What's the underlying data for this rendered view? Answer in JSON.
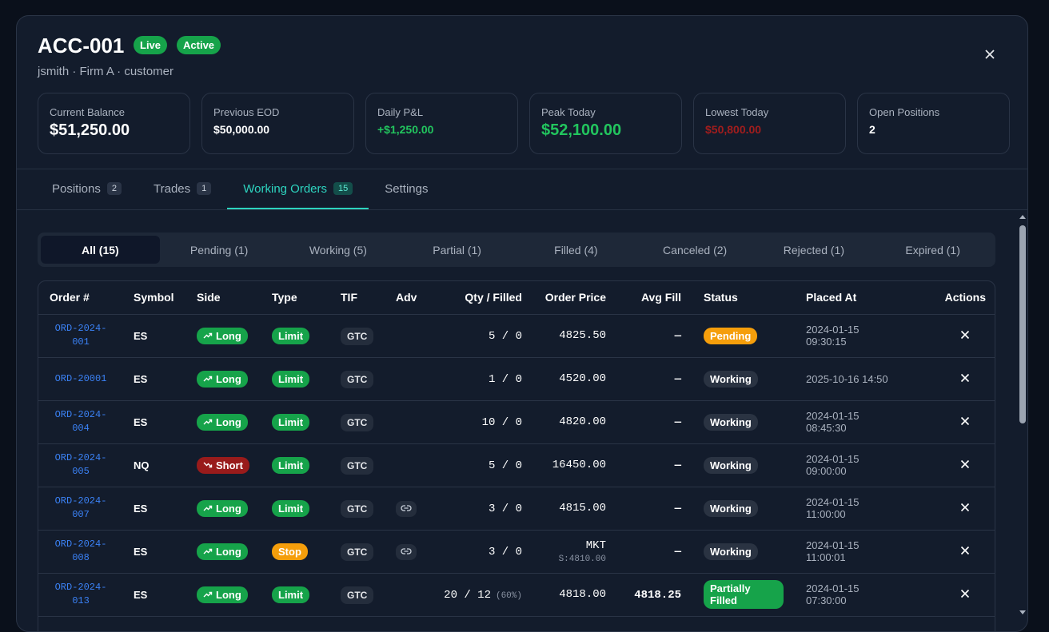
{
  "header": {
    "title": "ACC-001",
    "badges": [
      "Live",
      "Active"
    ],
    "subtitle": "jsmith · Firm A · customer"
  },
  "stats": [
    {
      "label": "Current Balance",
      "value": "$51,250.00",
      "color": "#ffffff"
    },
    {
      "label": "Previous EOD",
      "value": "$50,000.00",
      "color": "#ffffff"
    },
    {
      "label": "Daily P&L",
      "value": "+$1,250.00",
      "color": "#22c55e"
    },
    {
      "label": "Peak Today",
      "value": "$52,100.00",
      "color": "#22c55e"
    },
    {
      "label": "Lowest Today",
      "value": "$50,800.00",
      "color": "#a11d1d"
    },
    {
      "label": "Open Positions",
      "value": "2",
      "color": "#ffffff"
    }
  ],
  "tabs": {
    "active": 2,
    "items": [
      {
        "label": "Positions",
        "count": "2"
      },
      {
        "label": "Trades",
        "count": "1"
      },
      {
        "label": "Working Orders",
        "count": "15"
      },
      {
        "label": "Settings",
        "count": null
      }
    ]
  },
  "filters": {
    "active": 0,
    "items": [
      "All (15)",
      "Pending (1)",
      "Working (5)",
      "Partial (1)",
      "Filled (4)",
      "Canceled (2)",
      "Rejected (1)",
      "Expired (1)"
    ]
  },
  "table": {
    "columns": [
      "Order #",
      "Symbol",
      "Side",
      "Type",
      "TIF",
      "Adv",
      "Qty / Filled",
      "Order Price",
      "Avg Fill",
      "Status",
      "Placed At",
      "Actions"
    ],
    "rows": [
      {
        "order": "ORD-2024-001",
        "symbol": "ES",
        "side": "Long",
        "trend": "up",
        "side_color": "#16a34a",
        "type": "Limit",
        "type_color": "#16a34a",
        "tif": "GTC",
        "linked": false,
        "qty": "5 / 0",
        "pct": null,
        "price": "4825.50",
        "price_sub": null,
        "avg": "—",
        "status": "Pending",
        "status_color": "#f59e0b",
        "placed": "2024-01-15 09:30:15"
      },
      {
        "order": "ORD-20001",
        "symbol": "ES",
        "side": "Long",
        "trend": "up",
        "side_color": "#16a34a",
        "type": "Limit",
        "type_color": "#16a34a",
        "tif": "GTC",
        "linked": false,
        "qty": "1 / 0",
        "pct": null,
        "price": "4520.00",
        "price_sub": null,
        "avg": "—",
        "status": "Working",
        "status_color": "#2a3342",
        "placed": "2025-10-16 14:50"
      },
      {
        "order": "ORD-2024-004",
        "symbol": "ES",
        "side": "Long",
        "trend": "up",
        "side_color": "#16a34a",
        "type": "Limit",
        "type_color": "#16a34a",
        "tif": "GTC",
        "linked": false,
        "qty": "10 / 0",
        "pct": null,
        "price": "4820.00",
        "price_sub": null,
        "avg": "—",
        "status": "Working",
        "status_color": "#2a3342",
        "placed": "2024-01-15 08:45:30"
      },
      {
        "order": "ORD-2024-005",
        "symbol": "NQ",
        "side": "Short",
        "trend": "down",
        "side_color": "#991b1b",
        "type": "Limit",
        "type_color": "#16a34a",
        "tif": "GTC",
        "linked": false,
        "qty": "5 / 0",
        "pct": null,
        "price": "16450.00",
        "price_sub": null,
        "avg": "—",
        "status": "Working",
        "status_color": "#2a3342",
        "placed": "2024-01-15 09:00:00"
      },
      {
        "order": "ORD-2024-007",
        "symbol": "ES",
        "side": "Long",
        "trend": "up",
        "side_color": "#16a34a",
        "type": "Limit",
        "type_color": "#16a34a",
        "tif": "GTC",
        "linked": true,
        "qty": "3 / 0",
        "pct": null,
        "price": "4815.00",
        "price_sub": null,
        "avg": "—",
        "status": "Working",
        "status_color": "#2a3342",
        "placed": "2024-01-15 11:00:00"
      },
      {
        "order": "ORD-2024-008",
        "symbol": "ES",
        "side": "Long",
        "trend": "up",
        "side_color": "#16a34a",
        "type": "Stop",
        "type_color": "#f59e0b",
        "tif": "GTC",
        "linked": true,
        "qty": "3 / 0",
        "pct": null,
        "price": "MKT",
        "price_sub": "S:4810.00",
        "avg": "—",
        "status": "Working",
        "status_color": "#2a3342",
        "placed": "2024-01-15 11:00:01"
      },
      {
        "order": "ORD-2024-013",
        "symbol": "ES",
        "side": "Long",
        "trend": "up",
        "side_color": "#16a34a",
        "type": "Limit",
        "type_color": "#16a34a",
        "tif": "GTC",
        "linked": false,
        "qty": "20 / 12",
        "pct": "(60%)",
        "price": "4818.00",
        "price_sub": null,
        "avg": "4818.25",
        "status": "Partially Filled",
        "status_color": "#16a34a",
        "placed": "2024-01-15 07:30:00"
      }
    ]
  }
}
